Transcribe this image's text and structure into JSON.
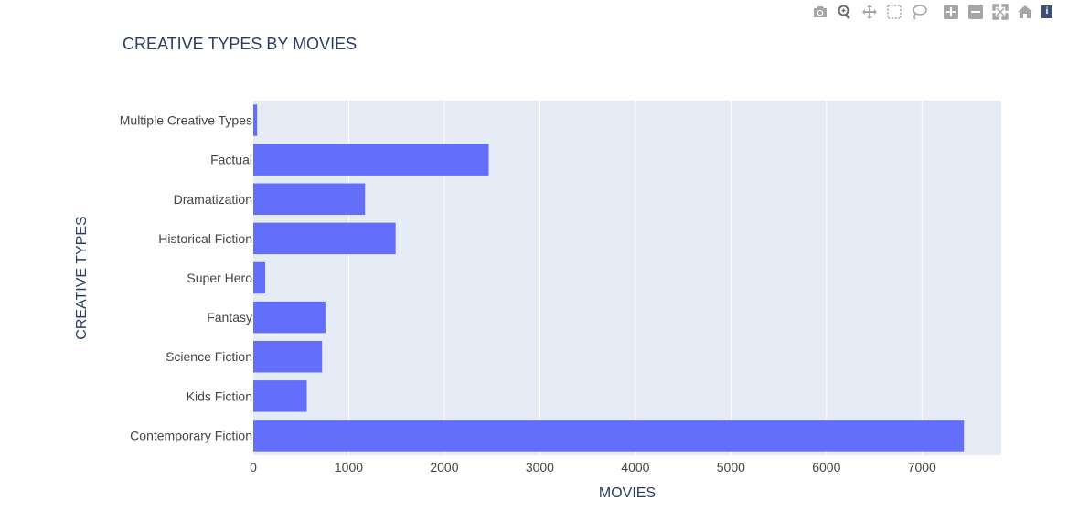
{
  "modebar": {
    "buttons": [
      {
        "name": "camera-icon",
        "title": "Download plot as a png"
      },
      {
        "name": "zoom-icon",
        "title": "Zoom"
      },
      {
        "name": "pan-icon",
        "title": "Pan"
      },
      {
        "name": "box-select-icon",
        "title": "Box Select"
      },
      {
        "name": "lasso-select-icon",
        "title": "Lasso Select"
      },
      {
        "name": "zoom-in-icon",
        "title": "Zoom in"
      },
      {
        "name": "zoom-out-icon",
        "title": "Zoom out"
      },
      {
        "name": "autoscale-icon",
        "title": "Autoscale"
      },
      {
        "name": "reset-axes-icon",
        "title": "Reset axes"
      }
    ]
  },
  "chart_data": {
    "type": "bar",
    "orientation": "horizontal",
    "title": "CREATIVE TYPES BY MOVIES",
    "xlabel": "MOVIES",
    "ylabel": "CREATIVE TYPES",
    "categories": [
      "Contemporary Fiction",
      "Kids Fiction",
      "Science Fiction",
      "Fantasy",
      "Super Hero",
      "Historical Fiction",
      "Dramatization",
      "Factual",
      "Multiple Creative Types"
    ],
    "values": [
      7440,
      560,
      720,
      755,
      125,
      1490,
      1170,
      2465,
      40
    ],
    "xlim": [
      0,
      7830
    ],
    "xticks": [
      0,
      1000,
      2000,
      3000,
      4000,
      5000,
      6000,
      7000
    ],
    "xtick_labels": [
      "0",
      "1000",
      "2000",
      "3000",
      "4000",
      "5000",
      "6000",
      "7000"
    ],
    "grid": true,
    "colors": {
      "bar": "#636efa",
      "plot_bg": "#e5ecf6",
      "grid": "#ffffff",
      "text": "#2a3f5f",
      "tick_text": "#444444"
    }
  }
}
